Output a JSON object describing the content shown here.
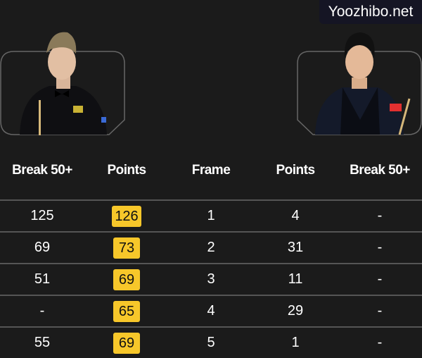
{
  "players": [
    {
      "side": "left",
      "photo": "player-photo-left"
    },
    {
      "side": "right",
      "photo": "player-photo-right"
    }
  ],
  "table": {
    "headers": [
      "Break 50+",
      "Points",
      "Frame",
      "Points",
      "Break 50+"
    ],
    "rows": [
      [
        "125",
        "126",
        "1",
        "4",
        "-"
      ],
      [
        "69",
        "73",
        "2",
        "31",
        "-"
      ],
      [
        "51",
        "69",
        "3",
        "11",
        "-"
      ],
      [
        "-",
        "65",
        "4",
        "29",
        "-"
      ],
      [
        "55",
        "69",
        "5",
        "1",
        "-"
      ]
    ]
  },
  "watermark": "Yoozhibo.net",
  "colors": {
    "background": "#1b1b1b",
    "highlight": "#f7c72a",
    "divider": "#555555"
  }
}
